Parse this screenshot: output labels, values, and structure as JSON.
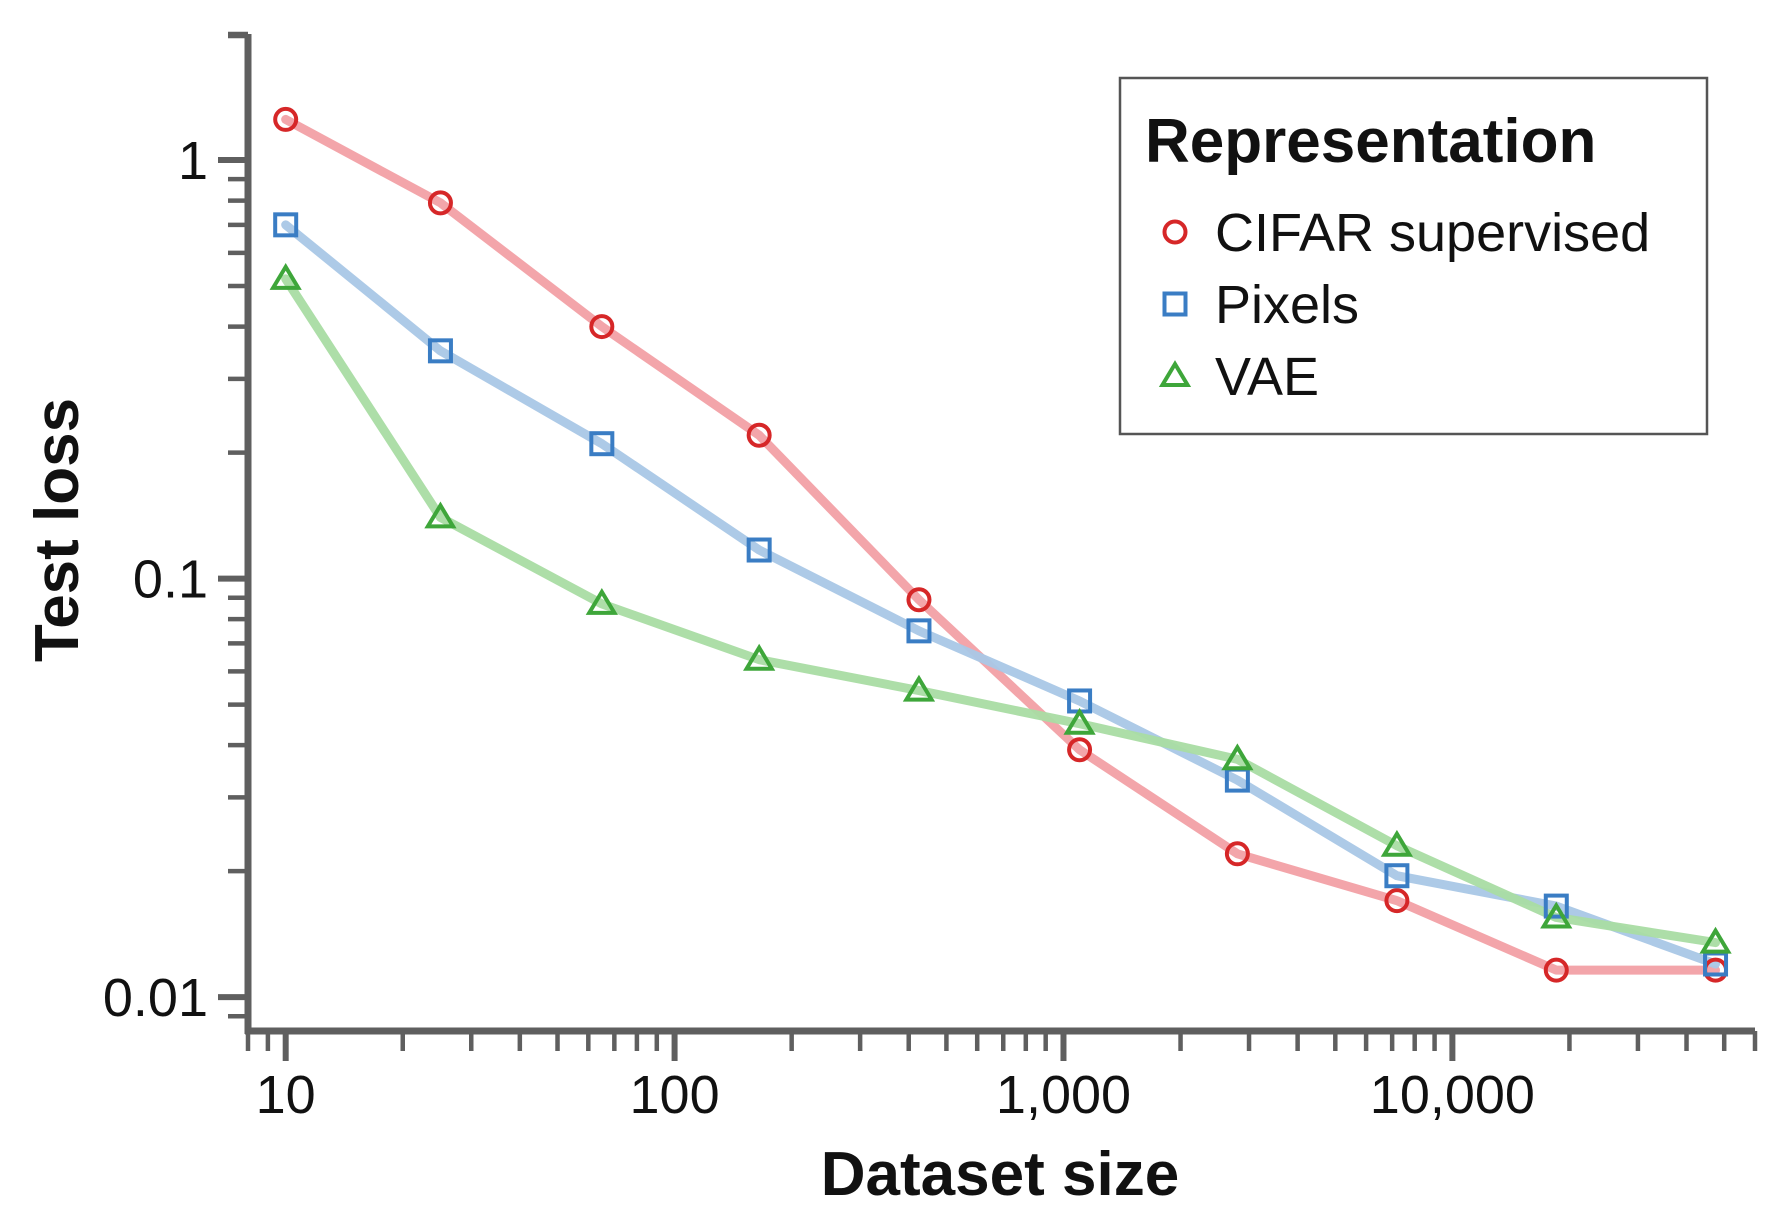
{
  "chart_data": {
    "type": "line",
    "title": "",
    "xlabel": "Dataset size",
    "ylabel": "Test loss",
    "xscale": "log",
    "yscale": "log",
    "xlim": [
      8,
      60000
    ],
    "ylim": [
      0.0083,
      2
    ],
    "grid": false,
    "legend": {
      "title": "Representation",
      "placement": "top-right"
    },
    "x_ticks": [
      {
        "value": 10,
        "label": "10"
      },
      {
        "value": 100,
        "label": "100"
      },
      {
        "value": 1000,
        "label": "1,000"
      },
      {
        "value": 10000,
        "label": "10,000"
      }
    ],
    "y_ticks": [
      {
        "value": 1,
        "label": "1"
      },
      {
        "value": 0.1,
        "label": "0.1"
      },
      {
        "value": 0.01,
        "label": "0.01"
      }
    ],
    "x": [
      10,
      25,
      65,
      165,
      425,
      1100,
      2800,
      7200,
      18500,
      47500
    ],
    "series": [
      {
        "name": "CIFAR supervised",
        "marker": "circle",
        "color": "#d62728",
        "line_color": "#f2a0a5",
        "values": [
          1.25,
          0.79,
          0.4,
          0.22,
          0.089,
          0.039,
          0.022,
          0.017,
          0.0116,
          0.0116
        ]
      },
      {
        "name": "Pixels",
        "marker": "square",
        "color": "#3a7dc4",
        "line_color": "#a9c7e6",
        "values": [
          0.7,
          0.35,
          0.21,
          0.117,
          0.075,
          0.051,
          0.033,
          0.0195,
          0.0165,
          0.012
        ]
      },
      {
        "name": "VAE",
        "marker": "triangle",
        "color": "#3ea63a",
        "line_color": "#a9dca3",
        "values": [
          0.52,
          0.14,
          0.087,
          0.064,
          0.054,
          0.045,
          0.037,
          0.023,
          0.0155,
          0.0135
        ]
      }
    ]
  }
}
